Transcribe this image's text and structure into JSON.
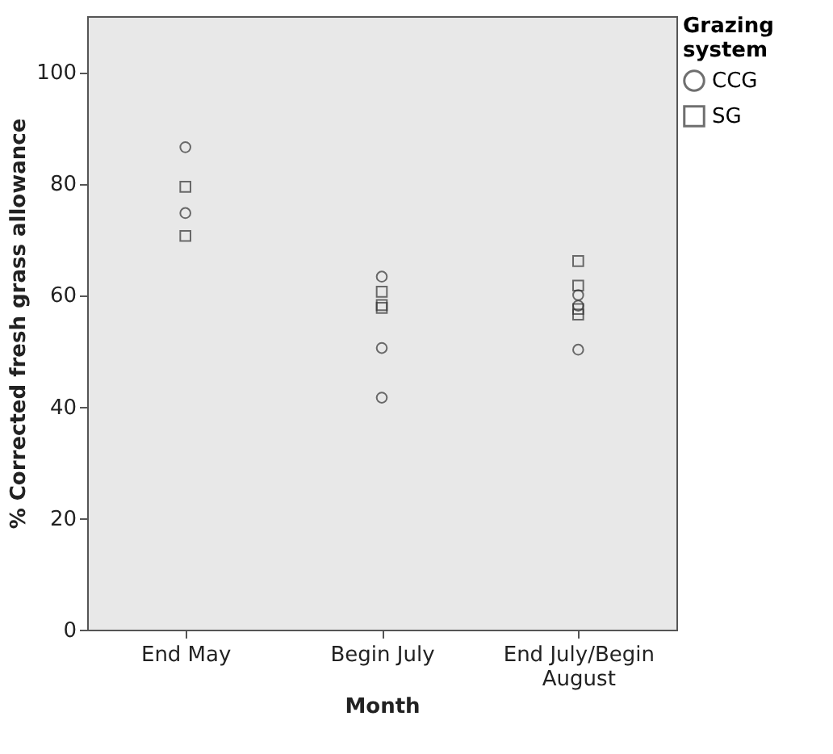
{
  "chart_data": {
    "type": "scatter",
    "xlabel": "Month",
    "ylabel": "% Corrected fresh grass allowance",
    "legend_title": "Grazing system",
    "legend": "top right",
    "grid": false,
    "categories": [
      "End May",
      "Begin July",
      "End July/Begin August"
    ],
    "ylim": [
      0,
      110
    ],
    "yticks": [
      0,
      20,
      40,
      60,
      80,
      100
    ],
    "series": [
      {
        "name": "CCG",
        "color": "#333333",
        "marker": "circle",
        "x": [
          "End May",
          "End May",
          "Begin July",
          "Begin July",
          "Begin July",
          "End July/Begin August",
          "End July/Begin August",
          "End July/Begin August"
        ],
        "values": [
          86.5,
          74.7,
          63.3,
          50.5,
          41.6,
          60.0,
          58.1,
          50.2
        ]
      },
      {
        "name": "SG",
        "color": "#333333",
        "marker": "square",
        "x": [
          "End May",
          "End May",
          "Begin July",
          "Begin July",
          "Begin July",
          "End July/Begin August",
          "End July/Begin August",
          "End July/Begin August",
          "End July/Begin August"
        ],
        "values": [
          79.4,
          70.6,
          60.6,
          58.2,
          57.7,
          66.1,
          61.7,
          57.5,
          56.5
        ]
      }
    ]
  }
}
